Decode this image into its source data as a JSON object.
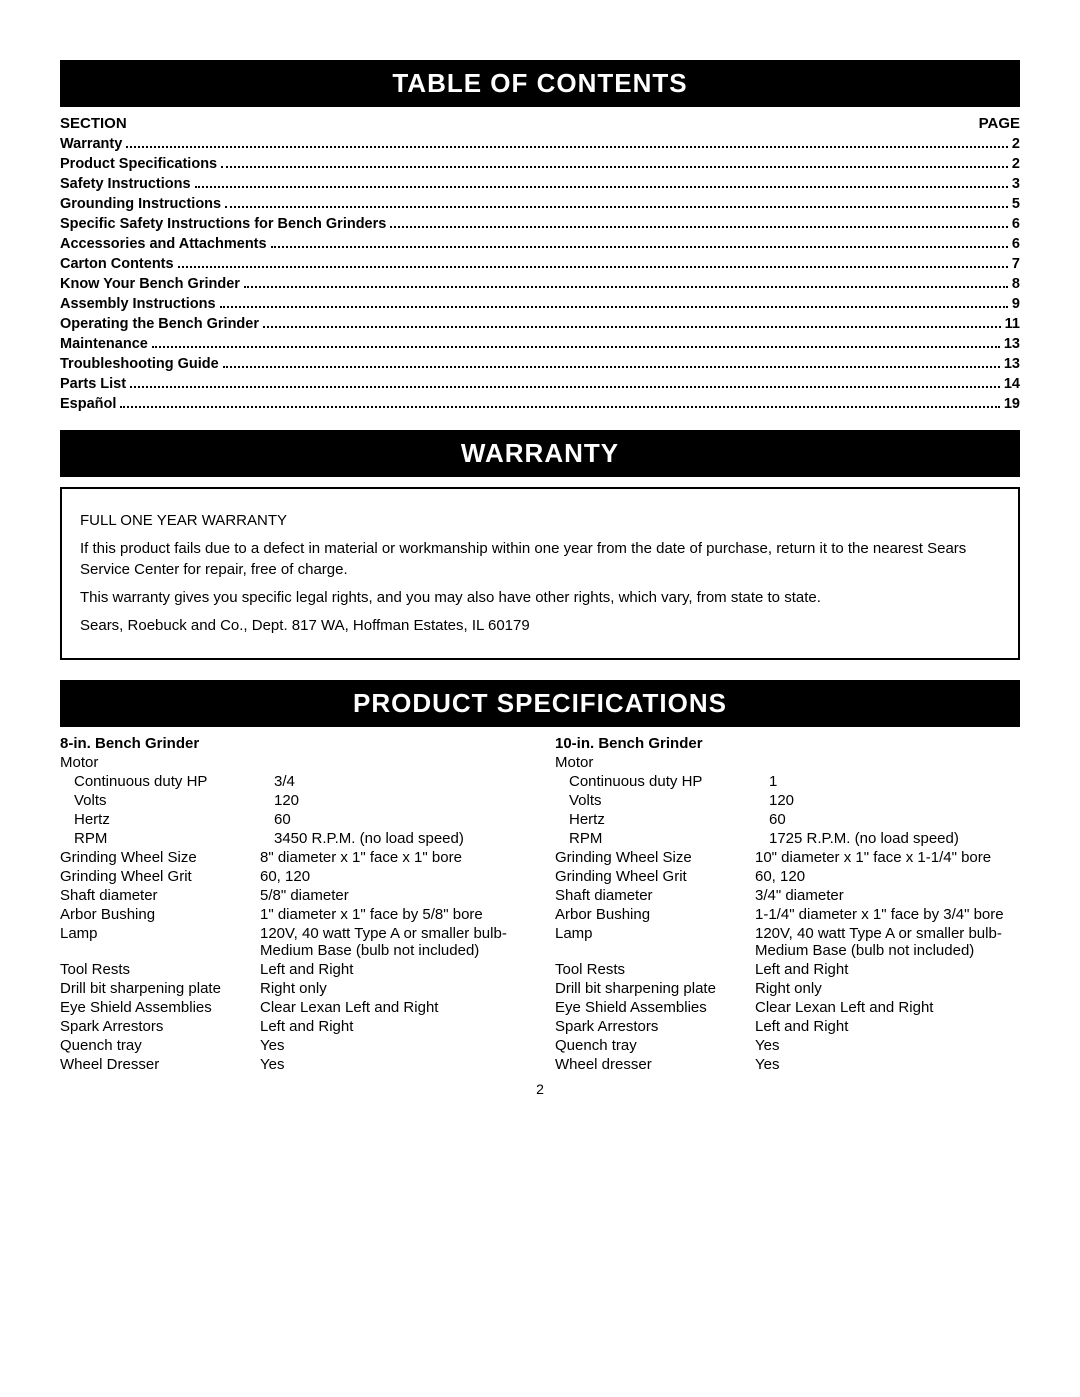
{
  "toc": {
    "header": "TABLE OF CONTENTS",
    "section_label": "SECTION",
    "page_label": "PAGE",
    "items": [
      {
        "title": "Warranty",
        "page": "2"
      },
      {
        "title": "Product Specifications",
        "page": "2"
      },
      {
        "title": "Safety Instructions",
        "page": "3"
      },
      {
        "title": "Grounding Instructions",
        "page": "5"
      },
      {
        "title": "Specific Safety Instructions for Bench Grinders",
        "page": "6"
      },
      {
        "title": "Accessories and Attachments",
        "page": "6"
      },
      {
        "title": "Carton Contents",
        "page": "7"
      },
      {
        "title": "Know Your Bench Grinder",
        "page": "8"
      },
      {
        "title": "Assembly Instructions",
        "page": "9"
      },
      {
        "title": "Operating the Bench Grinder",
        "page": "11"
      },
      {
        "title": "Maintenance",
        "page": "13"
      },
      {
        "title": "Troubleshooting Guide",
        "page": "13"
      },
      {
        "title": "Parts List",
        "page": "14"
      },
      {
        "title": "Español",
        "page": "19"
      }
    ]
  },
  "warranty": {
    "header": "WARRANTY",
    "title": "FULL ONE YEAR WARRANTY",
    "p1": "If this product fails due to a defect in material or workmanship within one year from the date of purchase, return it to the nearest Sears Service Center for repair, free of charge.",
    "p2": "This warranty gives you specific legal rights, and you may also have other rights, which vary, from state to state.",
    "p3": "Sears, Roebuck and Co., Dept. 817 WA, Hoffman Estates, IL 60179"
  },
  "specs": {
    "header": "PRODUCT SPECIFICATIONS",
    "col1": {
      "heading": "8-in. Bench Grinder",
      "motor_label": "Motor",
      "rows": [
        {
          "label": "Continuous duty HP",
          "value": "3/4",
          "indent": true
        },
        {
          "label": "Volts",
          "value": "120",
          "indent": true
        },
        {
          "label": "Hertz",
          "value": "60",
          "indent": true
        },
        {
          "label": "RPM",
          "value": "3450 R.P.M. (no load speed)",
          "indent": true
        },
        {
          "label": "Grinding Wheel Size",
          "value": "8\" diameter x 1\" face x 1\" bore",
          "indent": false
        },
        {
          "label": "Grinding Wheel Grit",
          "value": "60,  120",
          "indent": false
        },
        {
          "label": "Shaft diameter",
          "value": "5/8\" diameter",
          "indent": false
        },
        {
          "label": "Arbor Bushing",
          "value": "1\" diameter x 1\" face by 5/8\" bore",
          "indent": false
        },
        {
          "label": "Lamp",
          "value": "120V, 40 watt Type A or smaller bulb-Medium Base (bulb not included)",
          "indent": false
        },
        {
          "label": "Tool Rests",
          "value": "Left and Right",
          "indent": false
        },
        {
          "label": "Drill bit sharpening plate",
          "value": "Right only",
          "indent": false
        },
        {
          "label": "Eye Shield Assemblies",
          "value": "Clear Lexan Left and Right",
          "indent": false
        },
        {
          "label": "Spark Arrestors",
          "value": "Left and Right",
          "indent": false
        },
        {
          "label": "Quench tray",
          "value": "Yes",
          "indent": false
        },
        {
          "label": "Wheel Dresser",
          "value": "Yes",
          "indent": false
        }
      ]
    },
    "col2": {
      "heading": "10-in. Bench Grinder",
      "motor_label": "Motor",
      "rows": [
        {
          "label": "Continuous duty HP",
          "value": "1",
          "indent": true
        },
        {
          "label": "Volts",
          "value": "120",
          "indent": true
        },
        {
          "label": "Hertz",
          "value": "60",
          "indent": true
        },
        {
          "label": "RPM",
          "value": "1725 R.P.M. (no load speed)",
          "indent": true
        },
        {
          "label": "Grinding Wheel Size",
          "value": "10\" diameter x 1\" face x 1-1/4\" bore",
          "indent": false
        },
        {
          "label": "Grinding Wheel Grit",
          "value": "60,  120",
          "indent": false
        },
        {
          "label": "Shaft diameter",
          "value": "3/4\" diameter",
          "indent": false
        },
        {
          "label": "Arbor Bushing",
          "value": "1-1/4\" diameter x 1\" face by 3/4\" bore",
          "indent": false
        },
        {
          "label": "Lamp",
          "value": "120V, 40 watt Type A or smaller bulb-Medium Base (bulb not included)",
          "indent": false
        },
        {
          "label": "Tool Rests",
          "value": "Left and Right",
          "indent": false
        },
        {
          "label": "Drill bit sharpening plate",
          "value": "Right only",
          "indent": false
        },
        {
          "label": "Eye Shield Assemblies",
          "value": "Clear Lexan Left and Right",
          "indent": false
        },
        {
          "label": "Spark Arrestors",
          "value": "Left and Right",
          "indent": false
        },
        {
          "label": "Quench tray",
          "value": "Yes",
          "indent": false
        },
        {
          "label": "Wheel dresser",
          "value": "Yes",
          "indent": false
        }
      ]
    }
  },
  "page_number": "2",
  "colors": {
    "header_bg": "#000000",
    "header_fg": "#ffffff",
    "body_bg": "#ffffff",
    "text": "#000000"
  }
}
